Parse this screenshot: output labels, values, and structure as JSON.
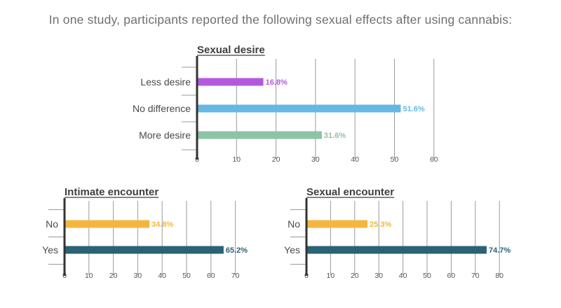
{
  "header": {
    "text": "In one study, participants reported the following sexual effects after using cannabis:"
  },
  "colors": {
    "less_desire": "#b558e0",
    "no_difference": "#66b8e3",
    "more_desire": "#8cc4a4",
    "no": "#f4b63f",
    "yes": "#2b6275",
    "grid": "#9a9a9a",
    "axis": "#333333"
  },
  "chart_data": [
    {
      "type": "bar",
      "orientation": "horizontal",
      "title": "Sexual desire",
      "categories": [
        "Less desire",
        "No difference",
        "More desire"
      ],
      "values": [
        16.8,
        51.6,
        31.6
      ],
      "value_labels": [
        "16.8%",
        "51.6%",
        "31.6%"
      ],
      "xlim": [
        0,
        60
      ],
      "xticks": [
        "0",
        "10",
        "20",
        "30",
        "40",
        "50",
        "60"
      ],
      "grid": true,
      "colors": [
        "#b558e0",
        "#66b8e3",
        "#8cc4a4"
      ]
    },
    {
      "type": "bar",
      "orientation": "horizontal",
      "title": "Intimate encounter",
      "categories": [
        "No",
        "Yes"
      ],
      "values": [
        34.8,
        65.2
      ],
      "value_labels": [
        "34.8%",
        "65.2%"
      ],
      "xlim": [
        0,
        70
      ],
      "xticks": [
        "0",
        "10",
        "20",
        "30",
        "40",
        "50",
        "60",
        "70"
      ],
      "grid": true,
      "colors": [
        "#f4b63f",
        "#2b6275"
      ]
    },
    {
      "type": "bar",
      "orientation": "horizontal",
      "title": "Sexual encounter",
      "categories": [
        "No",
        "Yes"
      ],
      "values": [
        25.3,
        74.7
      ],
      "value_labels": [
        "25.3%",
        "74.7%"
      ],
      "xlim": [
        0,
        80
      ],
      "xticks": [
        "0",
        "10",
        "20",
        "30",
        "40",
        "50",
        "60",
        "70",
        "80"
      ],
      "grid": true,
      "colors": [
        "#f4b63f",
        "#2b6275"
      ]
    }
  ]
}
